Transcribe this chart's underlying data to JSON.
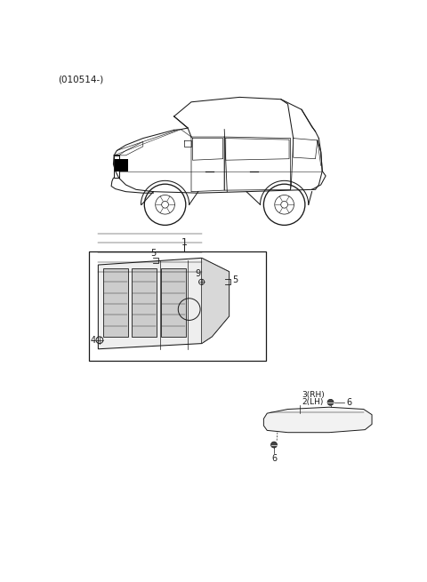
{
  "bg_color": "#ffffff",
  "text_color": "#1a1a1a",
  "header_text": "(010514-)",
  "header_fontsize": 7.5,
  "label_fontsize": 7,
  "fig_width": 4.8,
  "fig_height": 6.55,
  "dpi": 100
}
